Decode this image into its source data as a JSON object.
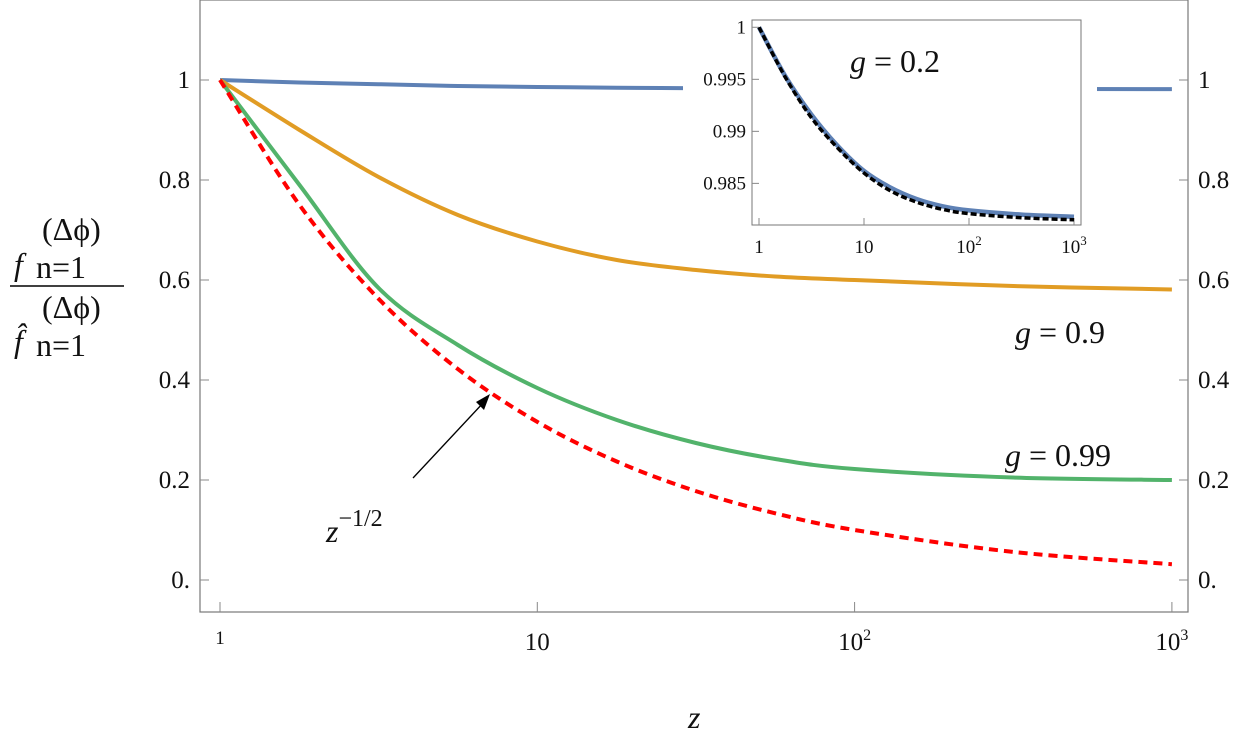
{
  "chart_data": {
    "type": "line",
    "xscale": "log",
    "xlim": [
      1,
      1000
    ],
    "ylim": [
      -0.06,
      1.16
    ],
    "xlabel": "z",
    "ylabel": {
      "base": "f",
      "hat_base": "f̂",
      "sup": "(Δϕ)",
      "sub": "n=1"
    },
    "xticks": [
      {
        "value": 1,
        "label": "1"
      },
      {
        "value": 10,
        "label": "10"
      },
      {
        "value": 100,
        "label": "10",
        "exp": "2"
      },
      {
        "value": 1000,
        "label": "10",
        "exp": "3"
      }
    ],
    "yticks": [
      {
        "value": 0,
        "label": "0."
      },
      {
        "value": 0.2,
        "label": "0.2"
      },
      {
        "value": 0.4,
        "label": "0.4"
      },
      {
        "value": 0.6,
        "label": "0.6"
      },
      {
        "value": 0.8,
        "label": "0.8"
      },
      {
        "value": 1,
        "label": "1"
      }
    ],
    "x": [
      1,
      1.78,
      3.16,
      5.62,
      10,
      17.8,
      31.6,
      56.2,
      100,
      316,
      1000
    ],
    "series": [
      {
        "name": "g = 0.2",
        "color": "#5e81b5",
        "style": "solid",
        "values": [
          1,
          0.995,
          0.9915,
          0.988,
          0.986,
          0.9845,
          0.9835,
          0.983,
          0.9824,
          0.982,
          0.9818
        ]
      },
      {
        "name": "g = 0.9",
        "color": "#e19c24",
        "style": "solid",
        "values": [
          1,
          0.9,
          0.806,
          0.73,
          0.677,
          0.64,
          0.62,
          0.607,
          0.6,
          0.588,
          0.581
        ]
      },
      {
        "name": "g = 0.99",
        "color": "#52b36b",
        "style": "solid",
        "values": [
          1,
          0.79,
          0.584,
          0.47,
          0.384,
          0.32,
          0.274,
          0.242,
          0.222,
          0.205,
          0.2
        ]
      },
      {
        "name": "z^{-1/2}",
        "color": "#ff0000",
        "style": "dashed",
        "values": [
          1,
          0.75,
          0.5625,
          0.4218,
          0.3162,
          0.237,
          0.1779,
          0.1334,
          0.1,
          0.0562,
          0.0316
        ]
      }
    ],
    "annotations": {
      "g09": {
        "g": "g",
        "rest": " = 0.9"
      },
      "g099": {
        "g": "g",
        "rest": " = 0.99"
      },
      "zpow": {
        "base": "z",
        "exp": "−1/2"
      }
    },
    "inset": {
      "title": {
        "g": "g",
        "rest": " = 0.2"
      },
      "xscale": "log",
      "xlim": [
        1,
        1000
      ],
      "ylim": [
        0.981,
        1.0007
      ],
      "xticks": [
        {
          "value": 1,
          "label": "1"
        },
        {
          "value": 10,
          "label": "10"
        },
        {
          "value": 100,
          "label": "10",
          "exp": "2"
        },
        {
          "value": 1000,
          "label": "10",
          "exp": "3"
        }
      ],
      "yticks": [
        {
          "value": 0.985,
          "label": "0.985"
        },
        {
          "value": 0.99,
          "label": "0.99"
        },
        {
          "value": 0.995,
          "label": "0.995"
        },
        {
          "value": 1,
          "label": "1"
        }
      ],
      "series": [
        {
          "color": "#5e81b5",
          "style": "solid",
          "values": [
            1,
            0.9953,
            0.9916,
            0.9886,
            0.9862,
            0.9846,
            0.9835,
            0.9828,
            0.9824,
            0.982,
            0.9818
          ]
        },
        {
          "color": "#000000",
          "style": "dashed",
          "values": [
            1,
            0.9952,
            0.9913,
            0.9884,
            0.986,
            0.9843,
            0.9832,
            0.9825,
            0.9821,
            0.9817,
            0.9815
          ]
        }
      ]
    }
  }
}
